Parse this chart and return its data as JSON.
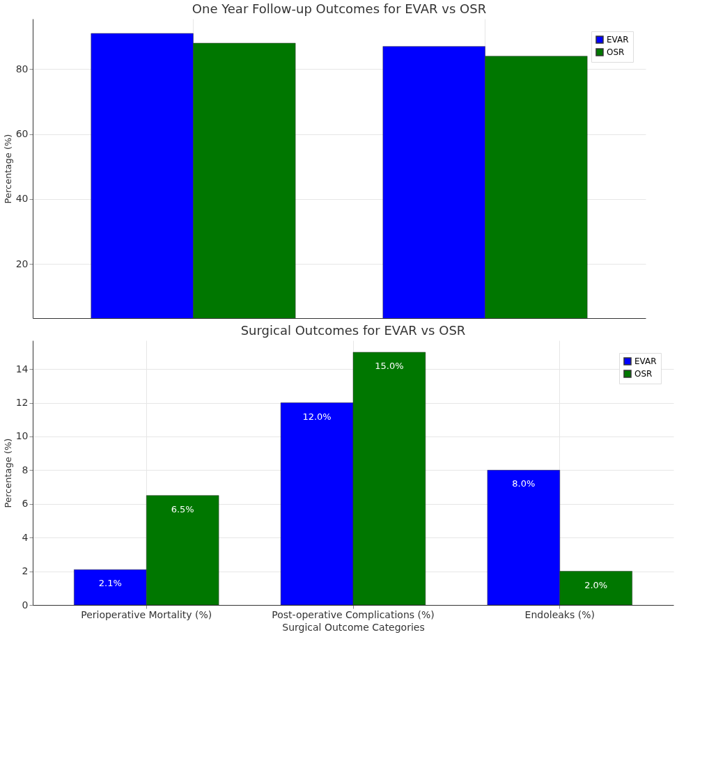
{
  "chart_data": [
    {
      "type": "bar",
      "title": "One Year Follow-up Outcomes for EVAR vs OSR",
      "ylabel": "Percentage (%)",
      "categories": [
        null,
        null
      ],
      "tick_labels": "y",
      "ylim": [
        3.3,
        95.5
      ],
      "yticks": [
        20,
        40,
        60,
        80
      ],
      "grid": true,
      "legend": "top right",
      "series": [
        {
          "name": "EVAR",
          "color": "#0000ff",
          "values": [
            91,
            87
          ]
        },
        {
          "name": "OSR",
          "color": "#007700",
          "values": [
            88,
            84
          ]
        }
      ]
    },
    {
      "type": "bar",
      "title": "Surgical Outcomes for EVAR vs OSR",
      "xlabel": "Surgical Outcome Categories",
      "ylabel": "Percentage (%)",
      "categories": [
        "Perioperative Mortality (%)",
        "Post-operative Complications (%)",
        "Endoleaks (%)"
      ],
      "ylim": [
        0,
        15.7
      ],
      "yticks": [
        0,
        2,
        4,
        6,
        8,
        10,
        12,
        14
      ],
      "grid": true,
      "legend": "top right",
      "series": [
        {
          "name": "EVAR",
          "color": "#0000ff",
          "values": [
            2.1,
            12.0,
            8.0
          ],
          "value_labels": [
            "2.1%",
            "12.0%",
            "8.0%"
          ]
        },
        {
          "name": "OSR",
          "color": "#007700",
          "values": [
            6.5,
            15.0,
            2.0
          ],
          "value_labels": [
            "6.5%",
            "15.0%",
            "2.0%"
          ]
        }
      ]
    }
  ]
}
